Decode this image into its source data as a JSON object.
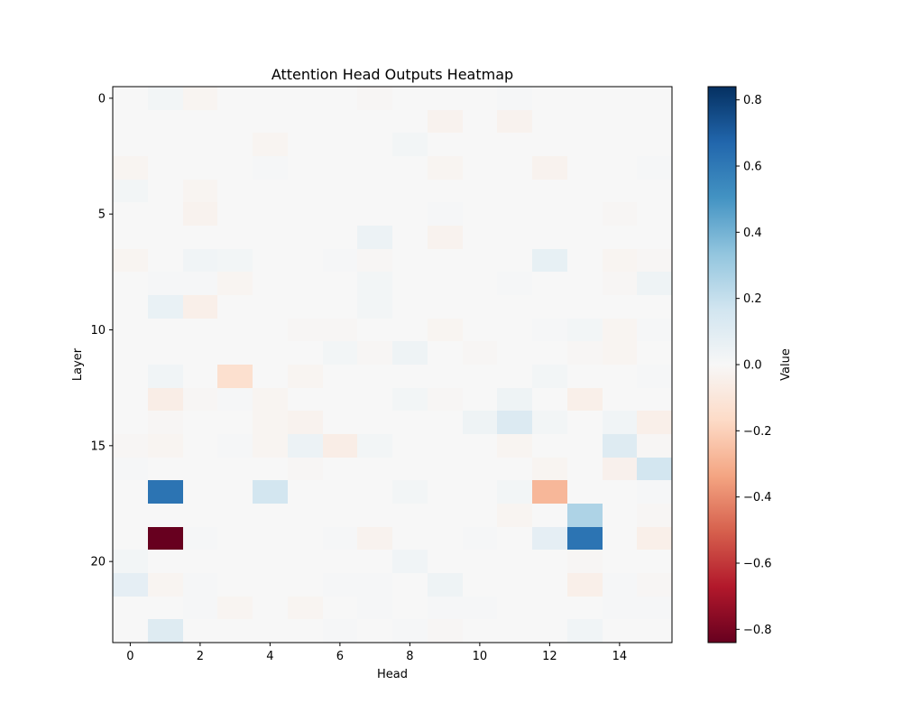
{
  "chart_data": {
    "type": "heatmap",
    "title": "Attention Head Outputs Heatmap",
    "xlabel": "Head",
    "ylabel": "Layer",
    "colorbar_label": "Value",
    "colormap": "RdBu",
    "vmin": -0.84,
    "vmax": 0.84,
    "n_rows": 24,
    "n_cols": 16,
    "x_ticks": [
      0,
      2,
      4,
      6,
      8,
      10,
      12,
      14
    ],
    "y_ticks": [
      0,
      5,
      10,
      15,
      20
    ],
    "colorbar_ticks": [
      0.8,
      0.6,
      0.4,
      0.2,
      0.0,
      -0.2,
      -0.4,
      -0.6,
      -0.8
    ],
    "colorbar_tick_labels": [
      "0.8",
      "0.6",
      "0.4",
      "0.2",
      "0.0",
      "−0.2",
      "−0.4",
      "−0.6",
      "−0.8"
    ],
    "values": [
      [
        0,
        0.02,
        -0.02,
        0,
        0,
        0,
        0,
        -0.01,
        0,
        0,
        0,
        0.01,
        0,
        0,
        0,
        0
      ],
      [
        0,
        0,
        0,
        0,
        0,
        0,
        0,
        0,
        0,
        -0.03,
        0,
        -0.03,
        0,
        0,
        0,
        0
      ],
      [
        0,
        0,
        0,
        0,
        -0.02,
        0,
        0,
        0,
        0.02,
        0,
        0,
        0,
        0,
        0,
        0,
        0
      ],
      [
        -0.02,
        0,
        0,
        0,
        0.01,
        0,
        0,
        0,
        0,
        -0.02,
        0,
        0,
        -0.03,
        0,
        0,
        0.01
      ],
      [
        0.02,
        0,
        -0.02,
        0,
        0,
        0,
        0,
        0,
        0,
        0,
        0,
        0,
        0,
        0,
        0,
        0
      ],
      [
        0,
        0,
        -0.03,
        0,
        0,
        0,
        0,
        0,
        0,
        0.01,
        0,
        0,
        0,
        0,
        -0.01,
        0
      ],
      [
        0,
        0,
        0,
        0,
        0,
        0,
        0,
        0.05,
        0,
        -0.03,
        0,
        0,
        0,
        0,
        0,
        0
      ],
      [
        -0.02,
        0,
        0.03,
        0.02,
        0,
        0,
        0.01,
        -0.01,
        0,
        0,
        0,
        0,
        0.07,
        0,
        -0.02,
        -0.01
      ],
      [
        0,
        0.01,
        0.01,
        -0.02,
        0,
        0,
        0,
        0.02,
        0,
        0,
        0,
        0.01,
        0,
        0,
        -0.01,
        0.04
      ],
      [
        0,
        0.06,
        -0.05,
        0,
        0,
        0,
        0,
        0.02,
        0,
        0,
        0,
        0,
        0,
        0,
        0,
        0
      ],
      [
        0,
        0,
        0,
        0,
        0,
        -0.01,
        -0.01,
        0,
        0,
        -0.02,
        0,
        0,
        0.01,
        0.02,
        -0.02,
        0.01
      ],
      [
        0,
        0,
        0,
        0,
        0,
        0,
        0.02,
        -0.01,
        0.04,
        0,
        -0.01,
        0,
        0,
        -0.01,
        -0.02,
        0
      ],
      [
        0,
        0.03,
        0,
        -0.14,
        0,
        -0.02,
        0,
        0,
        0,
        0,
        0,
        0,
        0.02,
        0,
        0,
        0.01
      ],
      [
        0,
        -0.06,
        -0.01,
        0.01,
        -0.02,
        0,
        0,
        0,
        0.02,
        -0.01,
        0,
        0.04,
        0,
        -0.05,
        0,
        0
      ],
      [
        0,
        -0.01,
        0,
        0,
        -0.02,
        -0.03,
        0,
        0,
        0,
        0,
        0.04,
        0.12,
        0.02,
        0,
        0.03,
        -0.05
      ],
      [
        -0.01,
        -0.02,
        0,
        0.01,
        -0.02,
        0.05,
        -0.06,
        0.02,
        0,
        0,
        0,
        -0.02,
        0,
        0,
        0.11,
        -0.01
      ],
      [
        0.01,
        0,
        0,
        0,
        0,
        -0.01,
        0,
        0,
        0,
        0,
        0,
        0,
        -0.02,
        0,
        -0.04,
        0.16
      ],
      [
        0,
        0.62,
        0,
        0,
        0.16,
        0,
        0,
        0,
        0.02,
        0,
        0,
        0.02,
        -0.28,
        0,
        0,
        0.01
      ],
      [
        0,
        0,
        0,
        0,
        0,
        0,
        0,
        0,
        0,
        0,
        0,
        -0.02,
        0,
        0.26,
        0,
        -0.01
      ],
      [
        0,
        -0.84,
        0.01,
        0,
        0,
        0,
        0.01,
        -0.03,
        0,
        0,
        0.01,
        0,
        0.08,
        0.62,
        0,
        -0.05
      ],
      [
        0.02,
        0,
        0,
        0,
        0,
        0,
        0,
        0,
        0.03,
        0,
        0,
        0,
        0,
        -0.01,
        0,
        0
      ],
      [
        0.08,
        -0.02,
        0.01,
        0,
        0,
        0,
        0.01,
        0.01,
        0,
        0.04,
        0,
        0,
        0,
        -0.05,
        0.01,
        -0.01
      ],
      [
        0,
        0,
        0.01,
        -0.02,
        0,
        -0.02,
        0,
        0.01,
        0,
        0.01,
        0.01,
        0,
        0,
        0,
        0.01,
        0.01
      ],
      [
        0,
        0.11,
        0,
        0,
        0,
        0,
        0.01,
        0,
        0.01,
        -0.01,
        0,
        0,
        0,
        0.03,
        0,
        0
      ]
    ]
  }
}
